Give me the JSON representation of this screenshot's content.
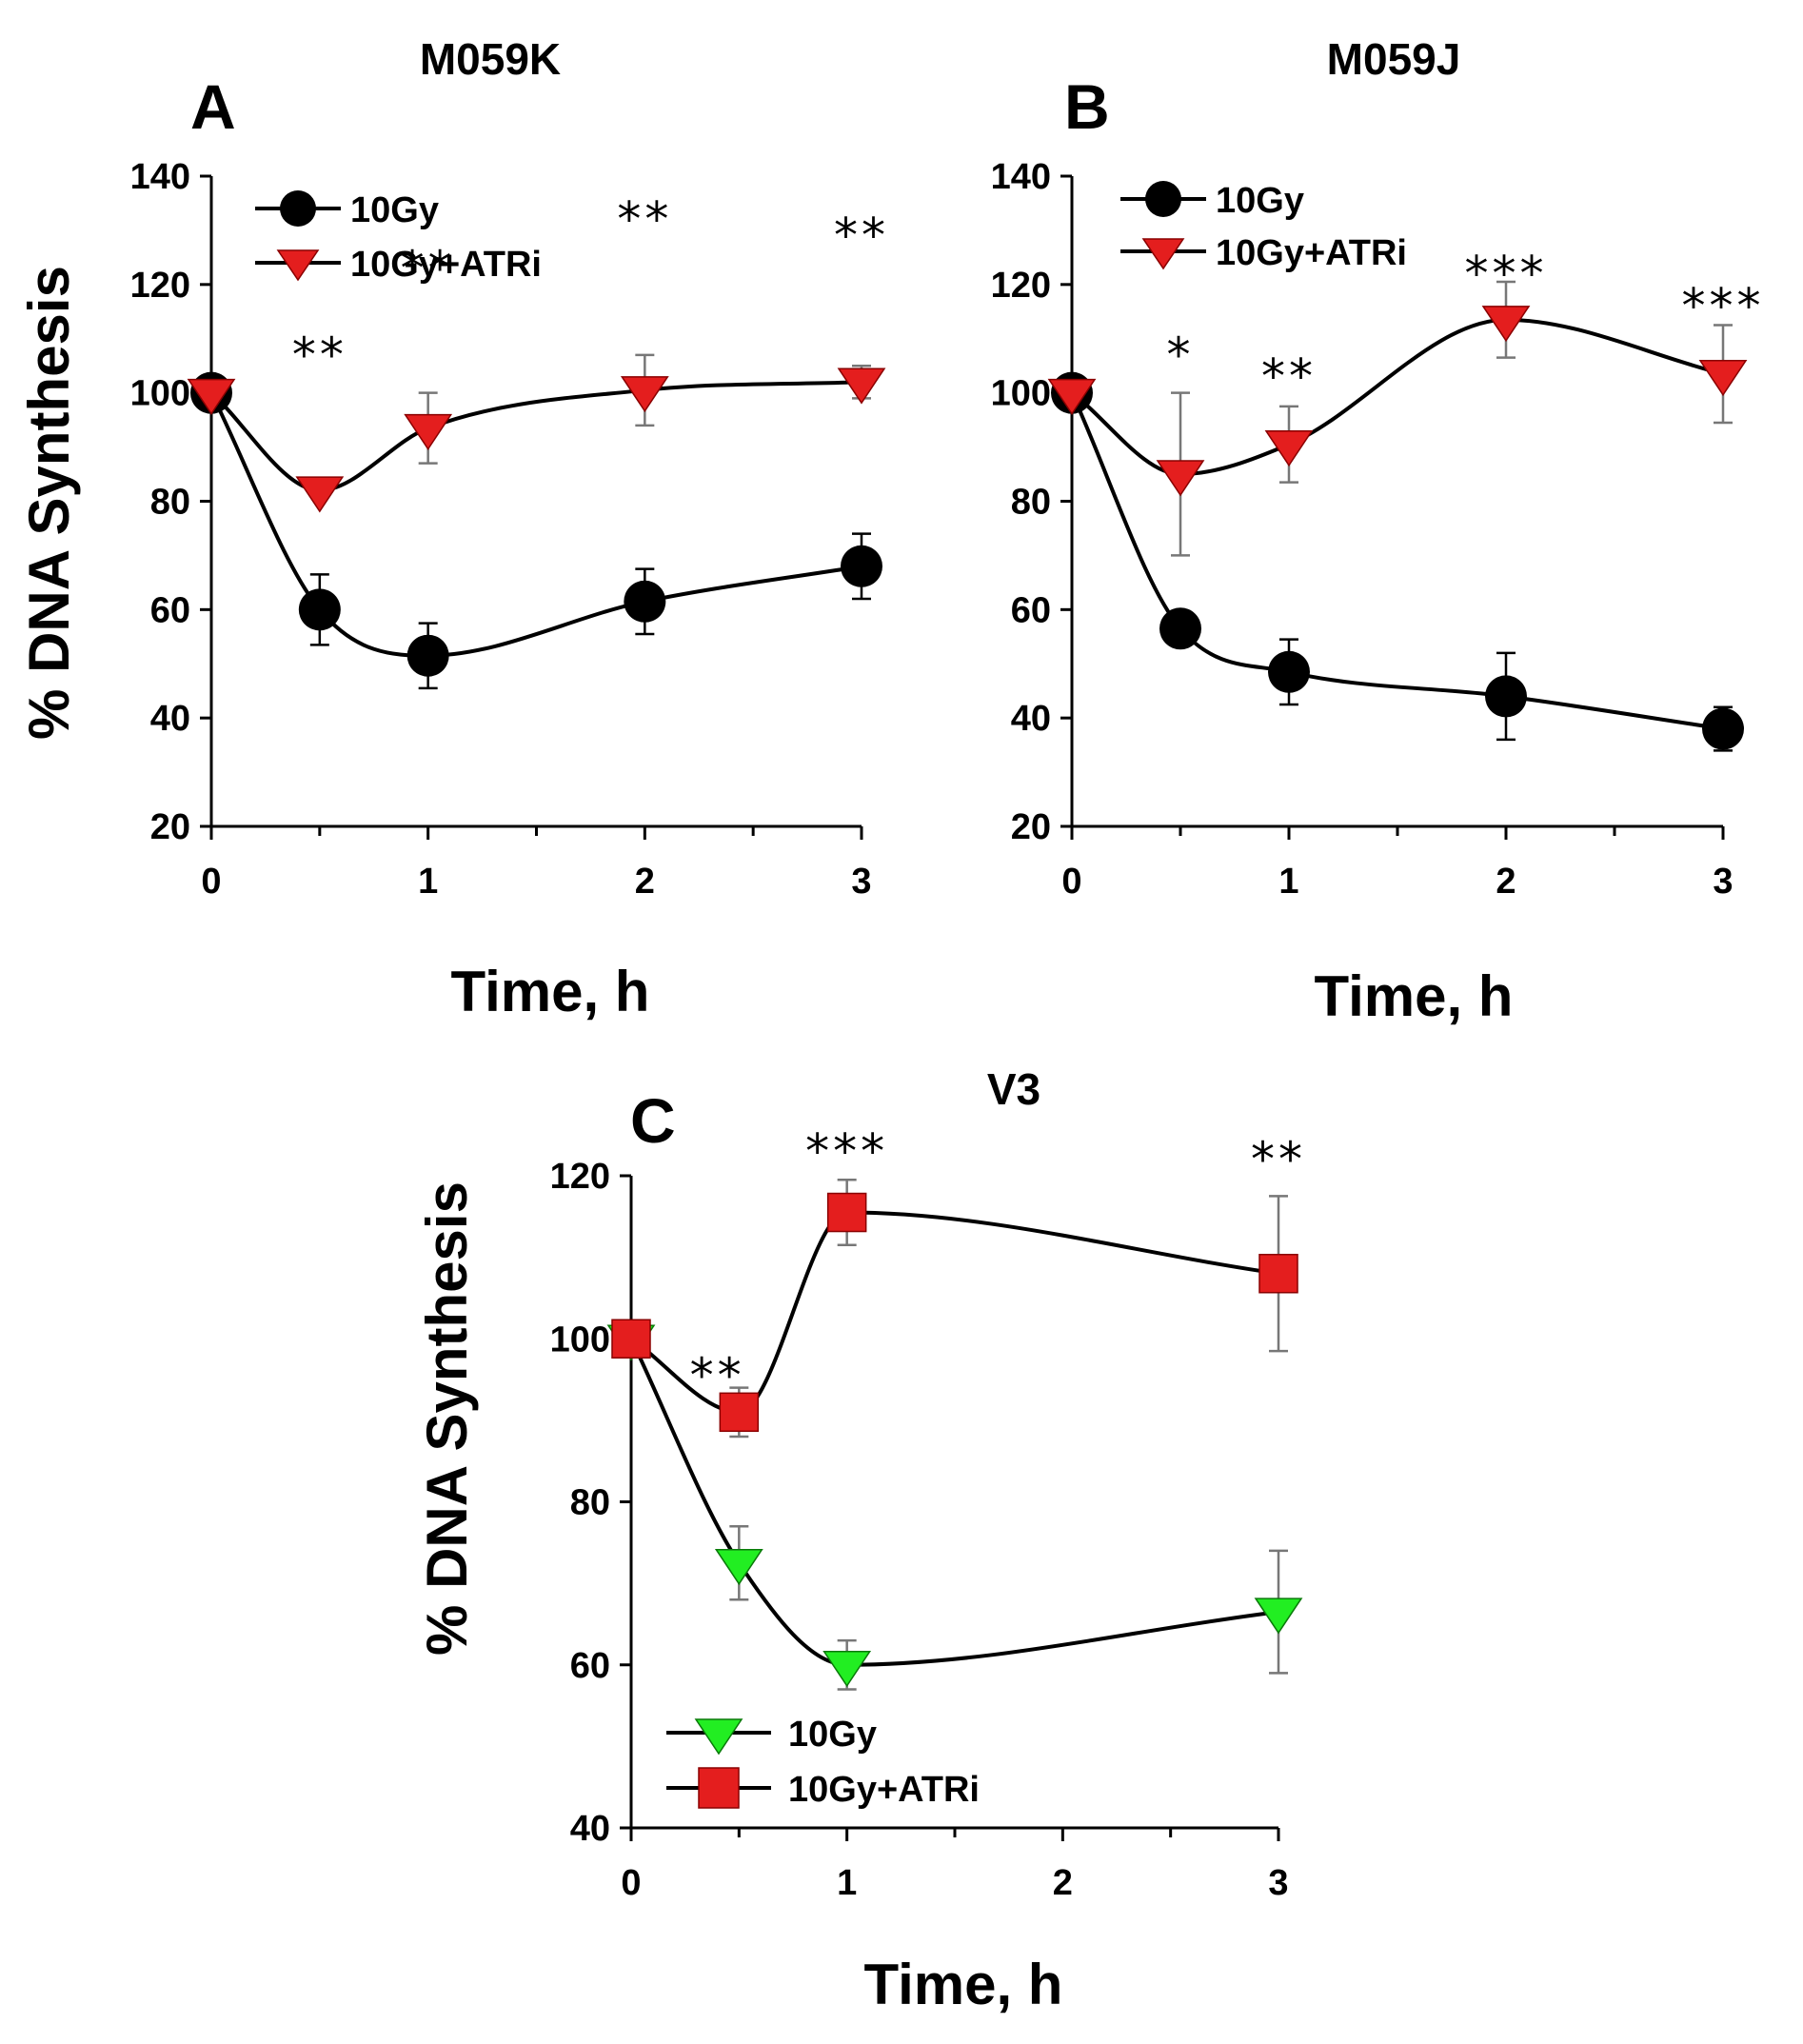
{
  "figure": {
    "colors": {
      "black_series": "#000000",
      "red_marker": "#e41e1e",
      "green_marker": "#22ee22",
      "axis": "#000000",
      "error_bar": "#777777"
    }
  },
  "chart_data": [
    {
      "id": "A",
      "type": "line",
      "panel_letter": "A",
      "title": "M059K",
      "xlabel": "Time, h",
      "ylabel": "% DNA Synthesis",
      "xlim": [
        0,
        3
      ],
      "ylim": [
        20,
        140
      ],
      "xticks": [
        0,
        1,
        2,
        3
      ],
      "yticks": [
        20,
        40,
        60,
        80,
        100,
        120,
        140
      ],
      "x_minor_step": 0.5,
      "legend_position": "top-left",
      "series": [
        {
          "name": "10Gy",
          "marker": "circle",
          "color": "#000000",
          "x": [
            0,
            0.5,
            1,
            2,
            3
          ],
          "values": [
            100,
            60,
            51.5,
            61.5,
            68
          ],
          "errors": [
            0,
            6.5,
            6,
            6,
            6
          ]
        },
        {
          "name": "10Gy+ATRi",
          "marker": "triangle-down",
          "color": "#e41e1e",
          "x": [
            0,
            0.5,
            1,
            2,
            3
          ],
          "values": [
            100,
            82,
            93.5,
            100.5,
            102
          ],
          "errors": [
            0,
            0,
            6.5,
            6.5,
            3
          ]
        }
      ],
      "significance": [
        {
          "x": 0.5,
          "y": 104,
          "label": "**"
        },
        {
          "x": 1,
          "y": 120,
          "label": "**"
        },
        {
          "x": 2,
          "y": 129,
          "label": "**"
        },
        {
          "x": 3,
          "y": 126,
          "label": "**"
        }
      ]
    },
    {
      "id": "B",
      "type": "line",
      "panel_letter": "B",
      "title": "M059J",
      "xlabel": "Time, h",
      "ylabel": "",
      "xlim": [
        0,
        3
      ],
      "ylim": [
        20,
        140
      ],
      "xticks": [
        0,
        1,
        2,
        3
      ],
      "yticks": [
        20,
        40,
        60,
        80,
        100,
        120,
        140
      ],
      "x_minor_step": 0.5,
      "legend_position": "top-left",
      "series": [
        {
          "name": "10Gy",
          "marker": "circle",
          "color": "#000000",
          "x": [
            0,
            0.5,
            1,
            2,
            3
          ],
          "values": [
            100,
            56.5,
            48.5,
            44,
            38
          ],
          "errors": [
            0,
            0,
            6,
            8,
            4
          ]
        },
        {
          "name": "10Gy+ATRi",
          "marker": "triangle-down",
          "color": "#e41e1e",
          "x": [
            0,
            0.5,
            1,
            2,
            3
          ],
          "values": [
            100,
            85,
            90.5,
            113.5,
            103.5
          ],
          "errors": [
            0,
            15,
            7,
            7,
            9
          ]
        }
      ],
      "significance": [
        {
          "x": 0.5,
          "y": 104,
          "label": "*"
        },
        {
          "x": 1,
          "y": 100,
          "label": "**"
        },
        {
          "x": 2,
          "y": 119,
          "label": "***"
        },
        {
          "x": 3,
          "y": 113,
          "label": "***"
        }
      ]
    },
    {
      "id": "C",
      "type": "line",
      "panel_letter": "C",
      "title": "V3",
      "xlabel": "Time, h",
      "ylabel": "% DNA Synthesis",
      "xlim": [
        0,
        3
      ],
      "ylim": [
        40,
        120
      ],
      "xticks": [
        0,
        1,
        2,
        3
      ],
      "yticks": [
        40,
        60,
        80,
        100,
        120
      ],
      "x_minor_step": 0.5,
      "legend_position": "bottom-left",
      "series": [
        {
          "name": "10Gy",
          "marker": "triangle-down",
          "color": "#22ee22",
          "x": [
            0,
            0.5,
            1,
            3
          ],
          "values": [
            100,
            72.5,
            60,
            66.5
          ],
          "errors": [
            0,
            4.5,
            3,
            7.5
          ]
        },
        {
          "name": "10Gy+ATRi",
          "marker": "square",
          "color": "#e41e1e",
          "x": [
            0,
            0.5,
            1,
            3
          ],
          "values": [
            100,
            91,
            115.5,
            108
          ],
          "errors": [
            0,
            3,
            4,
            9.5
          ]
        }
      ],
      "significance": [
        {
          "x": 0.4,
          "y": 93.5,
          "label": "**"
        },
        {
          "x": 1,
          "y": 121,
          "label": "***"
        },
        {
          "x": 3,
          "y": 120,
          "label": "**"
        }
      ]
    }
  ]
}
